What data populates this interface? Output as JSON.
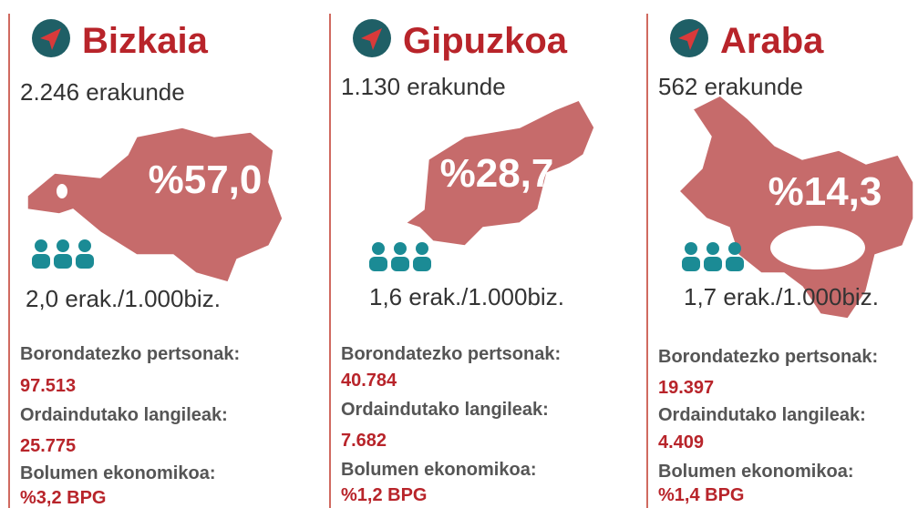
{
  "regions": [
    {
      "name": "Bizkaia",
      "organizations": "2.246 erakunde",
      "share": "%57,0",
      "density": "2,0 erak./1.000biz.",
      "volunteers_label": "Borondatezko pertsonak:",
      "volunteers": "97.513",
      "employees_label": "Ordaindutako langileak:",
      "employees": "25.775",
      "volume_label": "Bolumen ekonomikoa:",
      "volume": "%3,2 BPG"
    },
    {
      "name": "Gipuzkoa",
      "organizations": "1.130 erakunde",
      "share": "%28,7",
      "density": "1,6 erak./1.000biz.",
      "volunteers_label": "Borondatezko pertsonak:",
      "volunteers": "40.784",
      "employees_label": "Ordaindutako langileak:",
      "employees": "7.682",
      "volume_label": "Bolumen ekonomikoa:",
      "volume": "%1,2 BPG"
    },
    {
      "name": "Araba",
      "organizations": "562 erakunde",
      "share": "%14,3",
      "density": "1,7 erak./1.000biz.",
      "volunteers_label": "Borondatezko pertsonak:",
      "volunteers": "19.397",
      "employees_label": "Ordaindutako langileak:",
      "employees": "4.409",
      "volume_label": "Bolumen ekonomikoa:",
      "volume": "%1,4 BPG"
    }
  ]
}
